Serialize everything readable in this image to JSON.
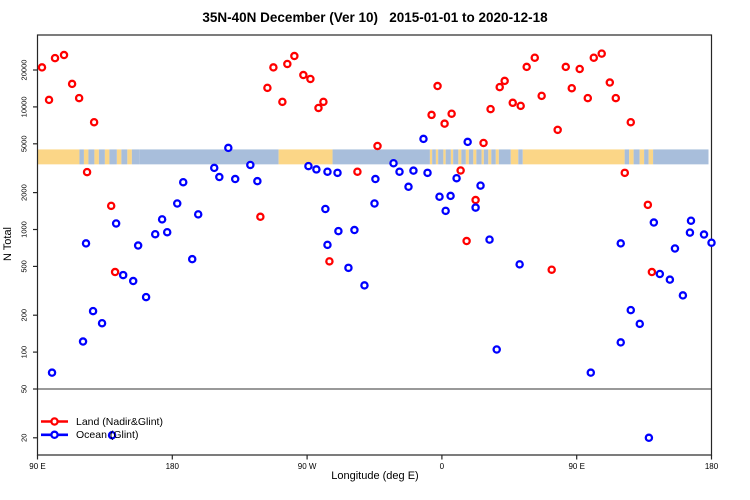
{
  "title": "35N-40N December (Ver 10)   2015-01-01 to 2020-12-18",
  "x_axis": {
    "label": "Longitude (deg E)",
    "ticks": [
      {
        "pos": 0,
        "label": "90 E"
      },
      {
        "pos": 90,
        "label": "180"
      },
      {
        "pos": 180,
        "label": "90 W"
      },
      {
        "pos": 270,
        "label": "0"
      },
      {
        "pos": 360,
        "label": "90 E"
      },
      {
        "pos": 450,
        "label": "180"
      }
    ],
    "axis_note": "pos = degrees of longitude east of the left edge; axis starts at 90E and spans 450 degrees"
  },
  "y_axis": {
    "label": "N Total",
    "ticks": [
      20000,
      10000,
      5000,
      2000,
      1000,
      500,
      200,
      100,
      50,
      20
    ],
    "scale": "log10",
    "range": [
      14.5,
      38600
    ]
  },
  "legend": [
    {
      "label": "Land (Nadir&Glint)",
      "color": "#ff0000"
    },
    {
      "label": "Ocean (Glint)",
      "color": "#0000ff"
    }
  ],
  "colors": {
    "land_point": "#ff0000",
    "ocean_point": "#0000ff",
    "strip_land": "#fbd687",
    "strip_ocean": "#a8bedb",
    "axis": "#262626",
    "threshold_line": "#333333"
  },
  "threshold_line_value": 50,
  "chart_data": {
    "type": "scatter",
    "title": "35N-40N December (Ver 10)   2015-01-01 to 2020-12-18",
    "xlabel": "Longitude (deg E)",
    "ylabel": "N Total",
    "ylog": true,
    "ylim": [
      14.5,
      38600
    ],
    "xlim_deg_from_left": [
      0,
      450
    ],
    "grid": false,
    "legend_position": "bottom-left inside plot",
    "horizontal_line_at_y": 50,
    "series": [
      {
        "name": "Land (Nadir&Glint)",
        "color": "#ff0000",
        "points": [
          [
            3.0,
            21000
          ],
          [
            11.7,
            25000
          ],
          [
            17.7,
            26500
          ],
          [
            23.1,
            15400
          ],
          [
            7.7,
            11400
          ],
          [
            27.8,
            11800
          ],
          [
            37.8,
            7500
          ],
          [
            33.1,
            2940
          ],
          [
            49.2,
            1560
          ],
          [
            51.8,
            450
          ],
          [
            148.8,
            1270
          ],
          [
            153.5,
            14300
          ],
          [
            157.5,
            21000
          ],
          [
            163.5,
            11000
          ],
          [
            166.8,
            22400
          ],
          [
            171.5,
            26000
          ],
          [
            177.5,
            18200
          ],
          [
            182.2,
            16900
          ],
          [
            187.6,
            9800
          ],
          [
            190.9,
            11000
          ],
          [
            194.9,
            550
          ],
          [
            213.6,
            2960
          ],
          [
            227.0,
            4800
          ],
          [
            263.1,
            8600
          ],
          [
            267.1,
            14800
          ],
          [
            271.8,
            7300
          ],
          [
            276.5,
            8800
          ],
          [
            282.5,
            3030
          ],
          [
            286.5,
            805
          ],
          [
            292.5,
            1740
          ],
          [
            297.8,
            5080
          ],
          [
            302.5,
            9600
          ],
          [
            308.6,
            14500
          ],
          [
            311.9,
            16300
          ],
          [
            317.3,
            10800
          ],
          [
            322.6,
            10200
          ],
          [
            326.6,
            21200
          ],
          [
            332.0,
            25200
          ],
          [
            336.6,
            12300
          ],
          [
            343.3,
            470
          ],
          [
            347.3,
            6500
          ],
          [
            352.7,
            21200
          ],
          [
            356.7,
            14200
          ],
          [
            362.0,
            20400
          ],
          [
            367.4,
            11800
          ],
          [
            371.4,
            25200
          ],
          [
            376.7,
            27200
          ],
          [
            382.1,
            15800
          ],
          [
            386.1,
            11800
          ],
          [
            392.1,
            2900
          ],
          [
            396.1,
            7500
          ],
          [
            407.5,
            1590
          ],
          [
            410.2,
            450
          ]
        ]
      },
      {
        "name": "Ocean (Glint)",
        "color": "#0000ff",
        "points": [
          [
            127.4,
            4630
          ],
          [
            118.0,
            3180
          ],
          [
            121.4,
            2680
          ],
          [
            132.0,
            2580
          ],
          [
            142.1,
            3360
          ],
          [
            146.8,
            2480
          ],
          [
            97.3,
            2430
          ],
          [
            93.3,
            1630
          ],
          [
            107.3,
            1330
          ],
          [
            83.2,
            1210
          ],
          [
            78.6,
            915
          ],
          [
            86.6,
            950
          ],
          [
            52.5,
            1120
          ],
          [
            32.4,
            770
          ],
          [
            67.2,
            740
          ],
          [
            192.2,
            1470
          ],
          [
            200.9,
            970
          ],
          [
            211.6,
            990
          ],
          [
            225.6,
            2580
          ],
          [
            225.0,
            1630
          ],
          [
            180.9,
            3290
          ],
          [
            186.2,
            3090
          ],
          [
            193.6,
            2960
          ],
          [
            200.3,
            2900
          ],
          [
            57.2,
            425
          ],
          [
            63.9,
            380
          ],
          [
            72.5,
            281
          ],
          [
            103.3,
            573
          ],
          [
            37.1,
            216
          ],
          [
            43.1,
            172
          ],
          [
            30.4,
            122
          ],
          [
            9.7,
            68
          ],
          [
            193.6,
            750
          ],
          [
            207.6,
            487
          ],
          [
            218.3,
            350
          ],
          [
            49.8,
            21
          ],
          [
            257.7,
            5480
          ],
          [
            287.2,
            5180
          ],
          [
            237.7,
            3470
          ],
          [
            241.7,
            2960
          ],
          [
            251.0,
            3020
          ],
          [
            260.4,
            2900
          ],
          [
            247.7,
            2230
          ],
          [
            268.4,
            1850
          ],
          [
            275.8,
            1880
          ],
          [
            272.5,
            1420
          ],
          [
            279.8,
            2620
          ],
          [
            295.8,
            2280
          ],
          [
            292.5,
            1510
          ],
          [
            301.8,
            827
          ],
          [
            411.5,
            1140
          ],
          [
            436.3,
            1180
          ],
          [
            435.6,
            944
          ],
          [
            445.0,
            910
          ],
          [
            389.4,
            770
          ],
          [
            321.9,
            520
          ],
          [
            425.6,
            700
          ],
          [
            415.5,
            434
          ],
          [
            422.2,
            390
          ],
          [
            430.9,
            290
          ],
          [
            396.1,
            220
          ],
          [
            402.1,
            170
          ],
          [
            389.4,
            120
          ],
          [
            306.6,
            105
          ],
          [
            369.4,
            68
          ],
          [
            408.2,
            20
          ],
          [
            450.0,
            780
          ]
        ]
      }
    ],
    "land_ocean_strip": {
      "description": "horizontal land/ocean map band across the plot",
      "value_band": [
        3400,
        4500
      ],
      "segments": [
        [
          0,
          28,
          "land"
        ],
        [
          28,
          31,
          "ocean"
        ],
        [
          31,
          34,
          "land"
        ],
        [
          34,
          38,
          "ocean"
        ],
        [
          38,
          41,
          "land"
        ],
        [
          41,
          45,
          "ocean"
        ],
        [
          45,
          48,
          "land"
        ],
        [
          48,
          53,
          "ocean"
        ],
        [
          53,
          56,
          "land"
        ],
        [
          56,
          60,
          "ocean"
        ],
        [
          60,
          63,
          "land"
        ],
        [
          63,
          68,
          "ocean"
        ],
        [
          68,
          161,
          "ocean"
        ],
        [
          161,
          197,
          "land"
        ],
        [
          197,
          262,
          "ocean"
        ],
        [
          262,
          263.5,
          "land"
        ],
        [
          263.5,
          266,
          "ocean"
        ],
        [
          266,
          267.5,
          "land"
        ],
        [
          267.5,
          271,
          "ocean"
        ],
        [
          271,
          272.5,
          "land"
        ],
        [
          272.5,
          276,
          "ocean"
        ],
        [
          276,
          277.5,
          "land"
        ],
        [
          277.5,
          281,
          "ocean"
        ],
        [
          281,
          283,
          "land"
        ],
        [
          283,
          286,
          "ocean"
        ],
        [
          286,
          288,
          "land"
        ],
        [
          288,
          291,
          "ocean"
        ],
        [
          291,
          293,
          "land"
        ],
        [
          293,
          296.5,
          "ocean"
        ],
        [
          296.5,
          298,
          "land"
        ],
        [
          298,
          301,
          "ocean"
        ],
        [
          301,
          303,
          "land"
        ],
        [
          303,
          306,
          "ocean"
        ],
        [
          306,
          308,
          "land"
        ],
        [
          308,
          316,
          "ocean"
        ],
        [
          316,
          321,
          "land"
        ],
        [
          321,
          324,
          "ocean"
        ],
        [
          324,
          392,
          "land"
        ],
        [
          392,
          395,
          "ocean"
        ],
        [
          395,
          398,
          "land"
        ],
        [
          398,
          402,
          "ocean"
        ],
        [
          402,
          405,
          "land"
        ],
        [
          405,
          408,
          "ocean"
        ],
        [
          408,
          411,
          "land"
        ],
        [
          411,
          448,
          "ocean"
        ]
      ]
    }
  }
}
